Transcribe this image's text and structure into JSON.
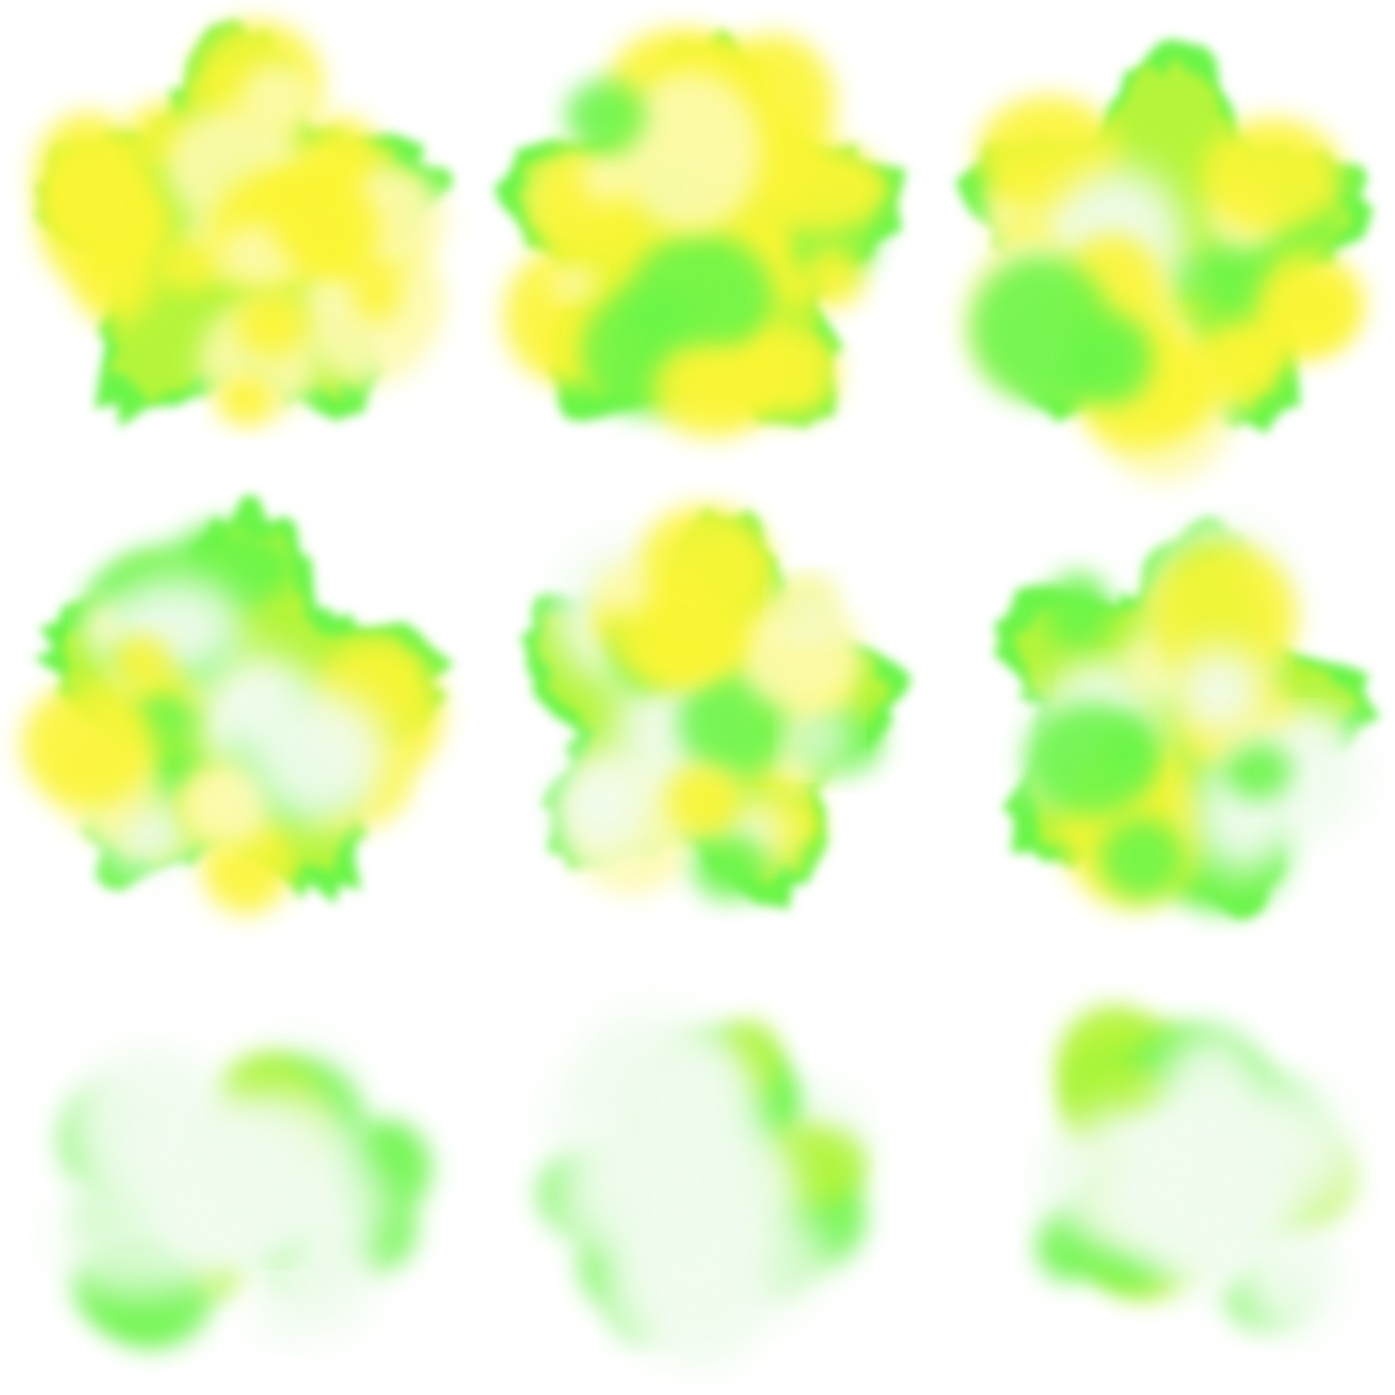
{
  "sprite_sheet": {
    "background_color": "#ffffff",
    "colors": {
      "rim": "#6cf54a",
      "mid": "#b4f53a",
      "core": "#fbf536",
      "hot": "#fdfbb0",
      "wisp": "#f1fcef"
    },
    "frames": [
      {
        "id": "frame-1",
        "dissolve": 0.0,
        "core": 0.95
      },
      {
        "id": "frame-2",
        "dissolve": 0.05,
        "core": 0.8
      },
      {
        "id": "frame-3",
        "dissolve": 0.1,
        "core": 0.65
      },
      {
        "id": "frame-4",
        "dissolve": 0.15,
        "core": 0.55
      },
      {
        "id": "frame-5",
        "dissolve": 0.25,
        "core": 0.45
      },
      {
        "id": "frame-6",
        "dissolve": 0.4,
        "core": 0.3
      },
      {
        "id": "frame-7",
        "dissolve": 0.55,
        "core": 0.12
      },
      {
        "id": "frame-8",
        "dissolve": 0.7,
        "core": 0.05
      },
      {
        "id": "frame-9",
        "dissolve": 0.85,
        "core": 0.0
      }
    ]
  }
}
